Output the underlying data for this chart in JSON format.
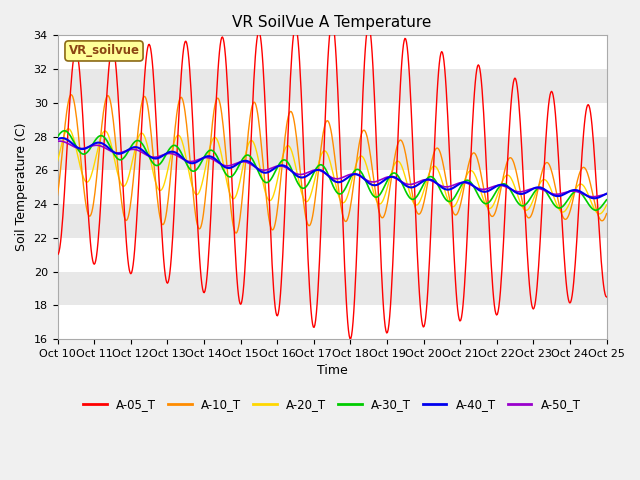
{
  "title": "VR SoilVue A Temperature",
  "ylabel": "Soil Temperature (C)",
  "xlabel": "Time",
  "ylim": [
    16,
    34
  ],
  "yticks": [
    16,
    18,
    20,
    22,
    24,
    26,
    28,
    30,
    32,
    34
  ],
  "xtick_labels": [
    "Oct 10",
    "Oct 11",
    "Oct 12",
    "Oct 13",
    "Oct 14",
    "Oct 15",
    "Oct 16",
    "Oct 17",
    "Oct 18",
    "Oct 19",
    "Oct 20",
    "Oct 21",
    "Oct 22",
    "Oct 23",
    "Oct 24",
    "Oct 25"
  ],
  "legend_label": "VR_soilvue",
  "colors": {
    "A-05_T": "#FF0000",
    "A-10_T": "#FF8C00",
    "A-20_T": "#FFD700",
    "A-30_T": "#00CC00",
    "A-40_T": "#0000EE",
    "A-50_T": "#9900CC"
  },
  "legend_colors": [
    "#FF0000",
    "#FF8C00",
    "#FFD700",
    "#00CC00",
    "#0000EE",
    "#9900CC"
  ],
  "legend_labels": [
    "A-05_T",
    "A-10_T",
    "A-20_T",
    "A-30_T",
    "A-40_T",
    "A-50_T"
  ],
  "bg_color": "#F0F0F0",
  "band_colors": [
    "#FFFFFF",
    "#E8E8E8"
  ],
  "title_fontsize": 11,
  "axis_fontsize": 9,
  "tick_fontsize": 8
}
